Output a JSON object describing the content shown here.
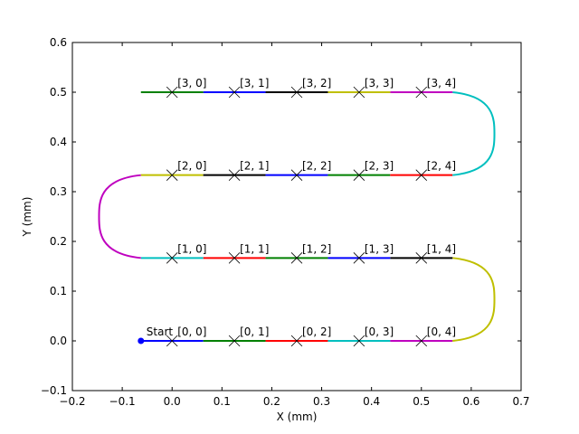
{
  "chart_data": {
    "type": "line",
    "xlabel": "X (mm)",
    "ylabel": "Y (mm)",
    "xlim": [
      -0.2,
      0.7
    ],
    "ylim": [
      -0.1,
      0.6
    ],
    "grid": false,
    "xticks": [
      -0.2,
      -0.1,
      0.0,
      0.1,
      0.2,
      0.3,
      0.4,
      0.5,
      0.6,
      0.7
    ],
    "yticks": [
      -0.1,
      0.0,
      0.1,
      0.2,
      0.3,
      0.4,
      0.5,
      0.6
    ],
    "xtick_labels": [
      "−0.2",
      "−0.1",
      "0.0",
      "0.1",
      "0.2",
      "0.3",
      "0.4",
      "0.5",
      "0.6",
      "0.7"
    ],
    "ytick_labels": [
      "−0.1",
      "0.0",
      "0.1",
      "0.2",
      "0.3",
      "0.4",
      "0.5",
      "0.6"
    ],
    "start": {
      "x": -0.0625,
      "y": 0.0,
      "label": "Start",
      "color": "#0000ff"
    },
    "path_segments": [
      {
        "kind": "line",
        "x": [
          -0.0625,
          0.0625
        ],
        "y": [
          0.0,
          0.0
        ],
        "color": "#0000ff"
      },
      {
        "kind": "line",
        "x": [
          0.0625,
          0.1875
        ],
        "y": [
          0.0,
          0.0
        ],
        "color": "#008000"
      },
      {
        "kind": "line",
        "x": [
          0.1875,
          0.3125
        ],
        "y": [
          0.0,
          0.0
        ],
        "color": "#ff0000"
      },
      {
        "kind": "line",
        "x": [
          0.3125,
          0.4375
        ],
        "y": [
          0.0,
          0.0
        ],
        "color": "#00bfbf"
      },
      {
        "kind": "line",
        "x": [
          0.4375,
          0.5625
        ],
        "y": [
          0.0,
          0.0
        ],
        "color": "#bf00bf"
      },
      {
        "kind": "arc",
        "x": [
          0.5625,
          0.5625
        ],
        "y": [
          0.0,
          0.1667
        ],
        "bulge": 0.042,
        "color": "#bfbf00"
      },
      {
        "kind": "line",
        "x": [
          0.5625,
          0.4375
        ],
        "y": [
          0.1667,
          0.1667
        ],
        "color": "#000000"
      },
      {
        "kind": "line",
        "x": [
          0.4375,
          0.3125
        ],
        "y": [
          0.1667,
          0.1667
        ],
        "color": "#0000ff"
      },
      {
        "kind": "line",
        "x": [
          0.3125,
          0.1875
        ],
        "y": [
          0.1667,
          0.1667
        ],
        "color": "#008000"
      },
      {
        "kind": "line",
        "x": [
          0.1875,
          0.0625
        ],
        "y": [
          0.1667,
          0.1667
        ],
        "color": "#ff0000"
      },
      {
        "kind": "line",
        "x": [
          0.0625,
          -0.0625
        ],
        "y": [
          0.1667,
          0.1667
        ],
        "color": "#00bfbf"
      },
      {
        "kind": "arc",
        "x": [
          -0.0625,
          -0.0625
        ],
        "y": [
          0.1667,
          0.3333
        ],
        "bulge": -0.042,
        "color": "#bf00bf"
      },
      {
        "kind": "line",
        "x": [
          -0.0625,
          0.0625
        ],
        "y": [
          0.3333,
          0.3333
        ],
        "color": "#bfbf00"
      },
      {
        "kind": "line",
        "x": [
          0.0625,
          0.1875
        ],
        "y": [
          0.3333,
          0.3333
        ],
        "color": "#000000"
      },
      {
        "kind": "line",
        "x": [
          0.1875,
          0.3125
        ],
        "y": [
          0.3333,
          0.3333
        ],
        "color": "#0000ff"
      },
      {
        "kind": "line",
        "x": [
          0.3125,
          0.4375
        ],
        "y": [
          0.3333,
          0.3333
        ],
        "color": "#008000"
      },
      {
        "kind": "line",
        "x": [
          0.4375,
          0.5625
        ],
        "y": [
          0.3333,
          0.3333
        ],
        "color": "#ff0000"
      },
      {
        "kind": "arc",
        "x": [
          0.5625,
          0.5625
        ],
        "y": [
          0.3333,
          0.5
        ],
        "bulge": 0.042,
        "color": "#00bfbf"
      },
      {
        "kind": "line",
        "x": [
          0.5625,
          0.4375
        ],
        "y": [
          0.5,
          0.5
        ],
        "color": "#bf00bf"
      },
      {
        "kind": "line",
        "x": [
          0.4375,
          0.3125
        ],
        "y": [
          0.5,
          0.5
        ],
        "color": "#bfbf00"
      },
      {
        "kind": "line",
        "x": [
          0.3125,
          0.1875
        ],
        "y": [
          0.5,
          0.5
        ],
        "color": "#000000"
      },
      {
        "kind": "line",
        "x": [
          0.1875,
          0.0625
        ],
        "y": [
          0.5,
          0.5
        ],
        "color": "#0000ff"
      },
      {
        "kind": "line",
        "x": [
          0.0625,
          -0.0625
        ],
        "y": [
          0.5,
          0.5
        ],
        "color": "#008000"
      }
    ],
    "points": [
      {
        "x": 0.0,
        "y": 0.0,
        "label": "[0, 0]"
      },
      {
        "x": 0.125,
        "y": 0.0,
        "label": "[0, 1]"
      },
      {
        "x": 0.25,
        "y": 0.0,
        "label": "[0, 2]"
      },
      {
        "x": 0.375,
        "y": 0.0,
        "label": "[0, 3]"
      },
      {
        "x": 0.5,
        "y": 0.0,
        "label": "[0, 4]"
      },
      {
        "x": 0.0,
        "y": 0.1667,
        "label": "[1, 0]"
      },
      {
        "x": 0.125,
        "y": 0.1667,
        "label": "[1, 1]"
      },
      {
        "x": 0.25,
        "y": 0.1667,
        "label": "[1, 2]"
      },
      {
        "x": 0.375,
        "y": 0.1667,
        "label": "[1, 3]"
      },
      {
        "x": 0.5,
        "y": 0.1667,
        "label": "[1, 4]"
      },
      {
        "x": 0.0,
        "y": 0.3333,
        "label": "[2, 0]"
      },
      {
        "x": 0.125,
        "y": 0.3333,
        "label": "[2, 1]"
      },
      {
        "x": 0.25,
        "y": 0.3333,
        "label": "[2, 2]"
      },
      {
        "x": 0.375,
        "y": 0.3333,
        "label": "[2, 3]"
      },
      {
        "x": 0.5,
        "y": 0.3333,
        "label": "[2, 4]"
      },
      {
        "x": 0.0,
        "y": 0.5,
        "label": "[3, 0]"
      },
      {
        "x": 0.125,
        "y": 0.5,
        "label": "[3, 1]"
      },
      {
        "x": 0.25,
        "y": 0.5,
        "label": "[3, 2]"
      },
      {
        "x": 0.375,
        "y": 0.5,
        "label": "[3, 3]"
      },
      {
        "x": 0.5,
        "y": 0.5,
        "label": "[3, 4]"
      }
    ],
    "marker": "x",
    "marker_color": "#000000"
  }
}
